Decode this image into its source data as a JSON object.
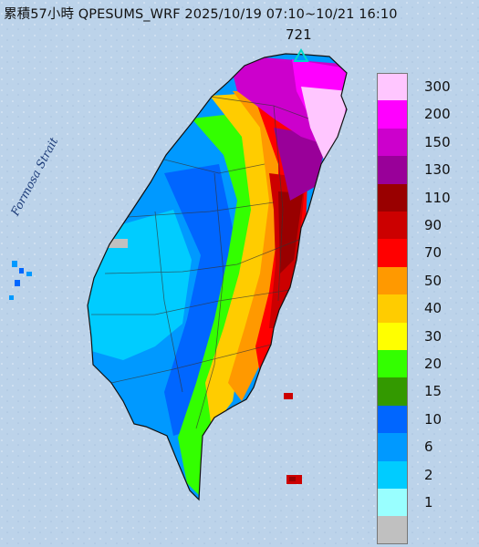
{
  "title": "累積57小時 QPESUMS_WRF 2025/10/19 07:10~10/21 16:10",
  "max_value": "721",
  "strait_label": "Formosa Strait",
  "legend": [
    {
      "label": "300",
      "color": "#ffc6ff"
    },
    {
      "label": "200",
      "color": "#ff00ff"
    },
    {
      "label": "150",
      "color": "#cc00cc"
    },
    {
      "label": "130",
      "color": "#990099"
    },
    {
      "label": "110",
      "color": "#990000"
    },
    {
      "label": "90",
      "color": "#cc0000"
    },
    {
      "label": "70",
      "color": "#ff0000"
    },
    {
      "label": "50",
      "color": "#ff9900"
    },
    {
      "label": "40",
      "color": "#ffcc00"
    },
    {
      "label": "30",
      "color": "#ffff00"
    },
    {
      "label": "20",
      "color": "#33ff00"
    },
    {
      "label": "15",
      "color": "#339900"
    },
    {
      "label": "10",
      "color": "#0066ff"
    },
    {
      "label": "6",
      "color": "#0099ff"
    },
    {
      "label": "2",
      "color": "#00ccff"
    },
    {
      "label": "1",
      "color": "#99ffff"
    },
    {
      "label": "",
      "color": "#c0c0c0"
    }
  ],
  "colors": {
    "sea": "#bcd3ea",
    "max_marker": "#00d9c8"
  }
}
